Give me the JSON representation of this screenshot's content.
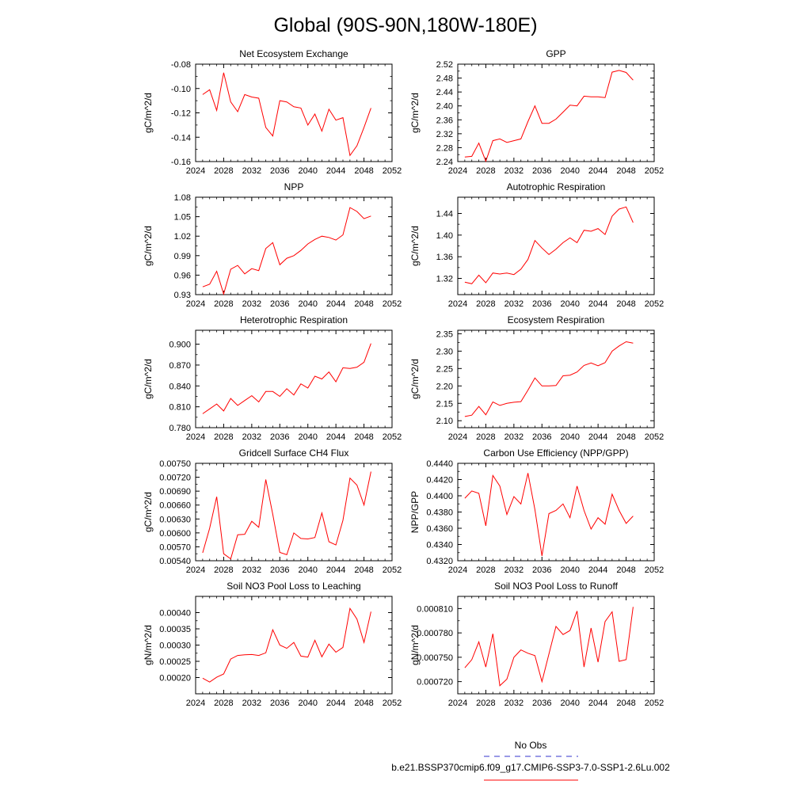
{
  "page": {
    "title": "Global (90S-90N,180W-180E)",
    "legend": [
      {
        "label": "No Obs",
        "color": "#3333cc",
        "dash": true
      },
      {
        "label": "b.e21.BSSP370cmip6.f09_g17.CMIP6-SSP3-7.0-SSP1-2.6Lu.002",
        "color": "#ff0000",
        "dash": false
      }
    ]
  },
  "chart_data": [
    {
      "type": "line",
      "title": "Net Ecosystem Exchange",
      "ylabel": "gC/m^2/d",
      "xlim": [
        2024,
        2052
      ],
      "ylim": [
        -0.16,
        -0.08
      ],
      "xticks": [
        "2024",
        "2028",
        "2032",
        "2036",
        "2040",
        "2044",
        "2048",
        "2052"
      ],
      "yticks": [
        "-0.16",
        "-0.14",
        "-0.12",
        "-0.10",
        "-0.08"
      ],
      "series": [
        {
          "color": "#ff0000",
          "x": [
            2025,
            2026,
            2027,
            2028,
            2029,
            2030,
            2031,
            2032,
            2033,
            2034,
            2035,
            2036,
            2037,
            2038,
            2039,
            2040,
            2041,
            2042,
            2043,
            2044,
            2045,
            2046,
            2047,
            2048,
            2049
          ],
          "y": [
            -0.105,
            -0.101,
            -0.118,
            -0.087,
            -0.111,
            -0.119,
            -0.105,
            -0.107,
            -0.108,
            -0.132,
            -0.139,
            -0.11,
            -0.111,
            -0.115,
            -0.116,
            -0.13,
            -0.121,
            -0.135,
            -0.117,
            -0.126,
            -0.124,
            -0.155,
            -0.147,
            -0.132,
            -0.116
          ]
        }
      ]
    },
    {
      "type": "line",
      "title": "GPP",
      "ylabel": "gC/m^2/d",
      "xlim": [
        2024,
        2052
      ],
      "ylim": [
        2.24,
        2.52
      ],
      "xticks": [
        "2024",
        "2028",
        "2032",
        "2036",
        "2040",
        "2044",
        "2048",
        "2052"
      ],
      "yticks": [
        "2.24",
        "2.28",
        "2.32",
        "2.36",
        "2.40",
        "2.44",
        "2.48",
        "2.52"
      ],
      "series": [
        {
          "color": "#ff0000",
          "x": [
            2025,
            2026,
            2027,
            2028,
            2029,
            2030,
            2031,
            2032,
            2033,
            2034,
            2035,
            2036,
            2037,
            2038,
            2039,
            2040,
            2041,
            2042,
            2043,
            2044,
            2045,
            2046,
            2047,
            2048,
            2049
          ],
          "y": [
            2.253,
            2.255,
            2.293,
            2.241,
            2.3,
            2.305,
            2.295,
            2.3,
            2.305,
            2.355,
            2.4,
            2.35,
            2.35,
            2.362,
            2.382,
            2.402,
            2.4,
            2.428,
            2.426,
            2.426,
            2.424,
            2.497,
            2.502,
            2.496,
            2.474
          ]
        }
      ]
    },
    {
      "type": "line",
      "title": "NPP",
      "ylabel": "gC/m^2/d",
      "xlim": [
        2024,
        2052
      ],
      "ylim": [
        0.93,
        1.08
      ],
      "xticks": [
        "2024",
        "2028",
        "2032",
        "2036",
        "2040",
        "2044",
        "2048",
        "2052"
      ],
      "yticks": [
        "0.93",
        "0.96",
        "0.99",
        "1.02",
        "1.05",
        "1.08"
      ],
      "series": [
        {
          "color": "#ff0000",
          "x": [
            2025,
            2026,
            2027,
            2028,
            2029,
            2030,
            2031,
            2032,
            2033,
            2034,
            2035,
            2036,
            2037,
            2038,
            2039,
            2040,
            2041,
            2042,
            2043,
            2044,
            2045,
            2046,
            2047,
            2048,
            2049
          ],
          "y": [
            0.942,
            0.946,
            0.966,
            0.931,
            0.969,
            0.975,
            0.962,
            0.97,
            0.967,
            1.001,
            1.01,
            0.976,
            0.986,
            0.99,
            0.998,
            1.008,
            1.015,
            1.02,
            1.018,
            1.014,
            1.022,
            1.064,
            1.058,
            1.047,
            1.051
          ]
        }
      ]
    },
    {
      "type": "line",
      "title": "Autotrophic Respiration",
      "ylabel": "gC/m^2/d",
      "xlim": [
        2024,
        2052
      ],
      "ylim": [
        1.29,
        1.47
      ],
      "xticks": [
        "2024",
        "2028",
        "2032",
        "2036",
        "2040",
        "2044",
        "2048",
        "2052"
      ],
      "yticks": [
        "1.32",
        "1.36",
        "1.40",
        "1.44"
      ],
      "series": [
        {
          "color": "#ff0000",
          "x": [
            2025,
            2026,
            2027,
            2028,
            2029,
            2030,
            2031,
            2032,
            2033,
            2034,
            2035,
            2036,
            2037,
            2038,
            2039,
            2040,
            2041,
            2042,
            2043,
            2044,
            2045,
            2046,
            2047,
            2048,
            2049
          ],
          "y": [
            1.313,
            1.31,
            1.326,
            1.312,
            1.33,
            1.328,
            1.33,
            1.327,
            1.337,
            1.355,
            1.39,
            1.376,
            1.364,
            1.374,
            1.386,
            1.395,
            1.386,
            1.409,
            1.407,
            1.412,
            1.401,
            1.435,
            1.448,
            1.452,
            1.423
          ]
        }
      ]
    },
    {
      "type": "line",
      "title": "Heterotrophic Respiration",
      "ylabel": "gC/m^2/d",
      "xlim": [
        2024,
        2052
      ],
      "ylim": [
        0.78,
        0.92
      ],
      "xticks": [
        "2024",
        "2028",
        "2032",
        "2036",
        "2040",
        "2044",
        "2048",
        "2052"
      ],
      "yticks": [
        "0.780",
        "0.810",
        "0.840",
        "0.870",
        "0.900"
      ],
      "series": [
        {
          "color": "#ff0000",
          "x": [
            2025,
            2026,
            2027,
            2028,
            2029,
            2030,
            2031,
            2032,
            2033,
            2034,
            2035,
            2036,
            2037,
            2038,
            2039,
            2040,
            2041,
            2042,
            2043,
            2044,
            2045,
            2046,
            2047,
            2048,
            2049
          ],
          "y": [
            0.8,
            0.807,
            0.814,
            0.804,
            0.822,
            0.812,
            0.819,
            0.826,
            0.817,
            0.832,
            0.832,
            0.825,
            0.836,
            0.827,
            0.843,
            0.837,
            0.854,
            0.85,
            0.86,
            0.846,
            0.866,
            0.865,
            0.867,
            0.874,
            0.901
          ]
        }
      ]
    },
    {
      "type": "line",
      "title": "Ecosystem Respiration",
      "ylabel": "gC/m^2/d",
      "xlim": [
        2024,
        2052
      ],
      "ylim": [
        2.08,
        2.36
      ],
      "xticks": [
        "2024",
        "2028",
        "2032",
        "2036",
        "2040",
        "2044",
        "2048",
        "2052"
      ],
      "yticks": [
        "2.10",
        "2.15",
        "2.20",
        "2.25",
        "2.30",
        "2.35"
      ],
      "series": [
        {
          "color": "#ff0000",
          "x": [
            2025,
            2026,
            2027,
            2028,
            2029,
            2030,
            2031,
            2032,
            2033,
            2034,
            2035,
            2036,
            2037,
            2038,
            2039,
            2040,
            2041,
            2042,
            2043,
            2044,
            2045,
            2046,
            2047,
            2048,
            2049
          ],
          "y": [
            2.112,
            2.116,
            2.141,
            2.117,
            2.154,
            2.144,
            2.15,
            2.153,
            2.155,
            2.188,
            2.223,
            2.2,
            2.2,
            2.201,
            2.229,
            2.231,
            2.24,
            2.259,
            2.266,
            2.258,
            2.267,
            2.3,
            2.315,
            2.327,
            2.323
          ]
        }
      ]
    },
    {
      "type": "line",
      "title": "Gridcell Surface CH4 Flux",
      "ylabel": "gC/m^2/d",
      "xlim": [
        2024,
        2052
      ],
      "ylim": [
        0.0054,
        0.0075
      ],
      "xticks": [
        "2024",
        "2028",
        "2032",
        "2036",
        "2040",
        "2044",
        "2048",
        "2052"
      ],
      "yticks": [
        "0.00540",
        "0.00570",
        "0.00600",
        "0.00630",
        "0.00660",
        "0.00690",
        "0.00720",
        "0.00750"
      ],
      "series": [
        {
          "color": "#ff0000",
          "x": [
            2025,
            2026,
            2027,
            2028,
            2029,
            2030,
            2031,
            2032,
            2033,
            2034,
            2035,
            2036,
            2037,
            2038,
            2039,
            2040,
            2041,
            2042,
            2043,
            2044,
            2045,
            2046,
            2047,
            2048,
            2049
          ],
          "y": [
            0.00557,
            0.0061,
            0.00678,
            0.00555,
            0.00544,
            0.00596,
            0.00597,
            0.00625,
            0.00612,
            0.00715,
            0.0064,
            0.00558,
            0.00553,
            0.006,
            0.00588,
            0.00587,
            0.0059,
            0.00643,
            0.00581,
            0.00574,
            0.00627,
            0.00718,
            0.00703,
            0.0066,
            0.00732
          ]
        }
      ]
    },
    {
      "type": "line",
      "title": "Carbon Use Efficiency (NPP/GPP)",
      "ylabel": "NPP/GPP",
      "xlim": [
        2024,
        2052
      ],
      "ylim": [
        0.432,
        0.444
      ],
      "xticks": [
        "2024",
        "2028",
        "2032",
        "2036",
        "2040",
        "2044",
        "2048",
        "2052"
      ],
      "yticks": [
        "0.4320",
        "0.4340",
        "0.4360",
        "0.4380",
        "0.4400",
        "0.4420",
        "0.4440"
      ],
      "series": [
        {
          "color": "#ff0000",
          "x": [
            2025,
            2026,
            2027,
            2028,
            2029,
            2030,
            2031,
            2032,
            2033,
            2034,
            2035,
            2036,
            2037,
            2038,
            2039,
            2040,
            2041,
            2042,
            2043,
            2044,
            2045,
            2046,
            2047,
            2048,
            2049
          ],
          "y": [
            0.4397,
            0.4406,
            0.4403,
            0.4363,
            0.4425,
            0.4412,
            0.4377,
            0.4399,
            0.439,
            0.4428,
            0.4383,
            0.4326,
            0.4378,
            0.4382,
            0.439,
            0.4373,
            0.4412,
            0.4382,
            0.4359,
            0.4373,
            0.4365,
            0.4402,
            0.4382,
            0.4366,
            0.4375
          ]
        }
      ]
    },
    {
      "type": "line",
      "title": "Soil NO3 Pool Loss to Leaching",
      "ylabel": "gN/m^2/d",
      "xlim": [
        2024,
        2052
      ],
      "ylim": [
        0.00015,
        0.00045
      ],
      "xticks": [
        "2024",
        "2028",
        "2032",
        "2036",
        "2040",
        "2044",
        "2048",
        "2052"
      ],
      "yticks": [
        "0.00020",
        "0.00025",
        "0.00030",
        "0.00035",
        "0.00040"
      ],
      "series": [
        {
          "color": "#ff0000",
          "x": [
            2025,
            2026,
            2027,
            2028,
            2029,
            2030,
            2031,
            2032,
            2033,
            2034,
            2035,
            2036,
            2037,
            2038,
            2039,
            2040,
            2041,
            2042,
            2043,
            2044,
            2045,
            2046,
            2047,
            2048,
            2049
          ],
          "y": [
            0.000198,
            0.000186,
            0.000201,
            0.000211,
            0.000257,
            0.000268,
            0.00027,
            0.000271,
            0.000268,
            0.000276,
            0.000347,
            0.0003,
            0.00029,
            0.000308,
            0.000266,
            0.000263,
            0.000315,
            0.000264,
            0.000303,
            0.000278,
            0.000293,
            0.000413,
            0.00038,
            0.000308,
            0.000403
          ]
        }
      ]
    },
    {
      "type": "line",
      "title": "Soil NO3 Pool Loss to Runoff",
      "ylabel": "gN/m^2/d",
      "xlim": [
        2024,
        2052
      ],
      "ylim": [
        0.000705,
        0.000825
      ],
      "xticks": [
        "2024",
        "2028",
        "2032",
        "2036",
        "2040",
        "2044",
        "2048",
        "2052"
      ],
      "yticks": [
        "0.000720",
        "0.000750",
        "0.000780",
        "0.000810"
      ],
      "series": [
        {
          "color": "#ff0000",
          "x": [
            2025,
            2026,
            2027,
            2028,
            2029,
            2030,
            2031,
            2032,
            2033,
            2034,
            2035,
            2036,
            2037,
            2038,
            2039,
            2040,
            2041,
            2042,
            2043,
            2044,
            2045,
            2046,
            2047,
            2048,
            2049
          ],
          "y": [
            0.000737,
            0.000747,
            0.000769,
            0.000738,
            0.000779,
            0.000715,
            0.000723,
            0.00075,
            0.000759,
            0.000755,
            0.000752,
            0.00072,
            0.000754,
            0.000788,
            0.000778,
            0.000783,
            0.000807,
            0.000738,
            0.000786,
            0.000744,
            0.000794,
            0.000806,
            0.000745,
            0.000747,
            0.000812
          ]
        }
      ]
    }
  ]
}
